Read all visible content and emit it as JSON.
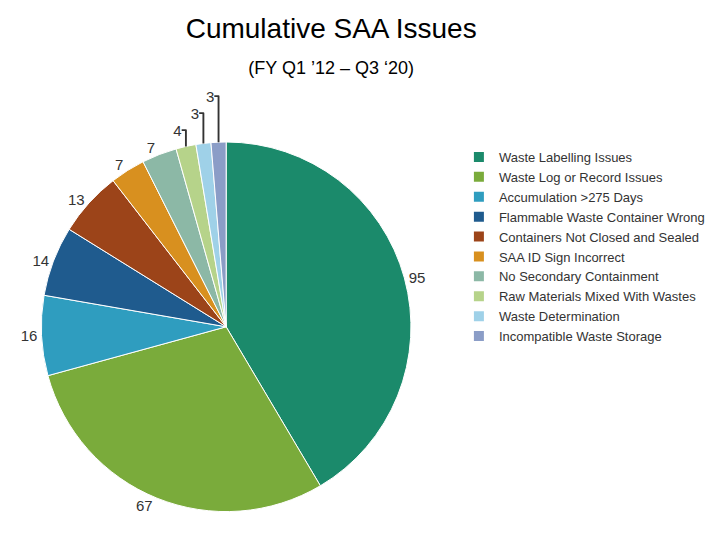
{
  "chart_data": {
    "type": "pie",
    "title": "Cumulative SAA Issues",
    "subtitle": "(FY Q1 ’12 – Q3 ‘20)",
    "categories": [
      "Waste Labelling Issues",
      "Waste Log or Record Issues",
      "Accumulation >275 Days",
      "Flammable Waste Container Wrong",
      "Containers Not Closed and Sealed",
      "SAA ID Sign Incorrect",
      "No Secondary Containment",
      "Raw Materials Mixed With Wastes",
      "Waste Determination",
      "Incompatible Waste Storage"
    ],
    "values": [
      95,
      67,
      16,
      14,
      13,
      7,
      7,
      4,
      3,
      3
    ],
    "colors": [
      "#1b8a6b",
      "#7aab3b",
      "#2f9dbf",
      "#1f5b8e",
      "#9c4419",
      "#d8901f",
      "#8cb8a6",
      "#b6d38a",
      "#9fd1e8",
      "#8b9dc7"
    ],
    "legend": "right",
    "data_labels": true
  }
}
